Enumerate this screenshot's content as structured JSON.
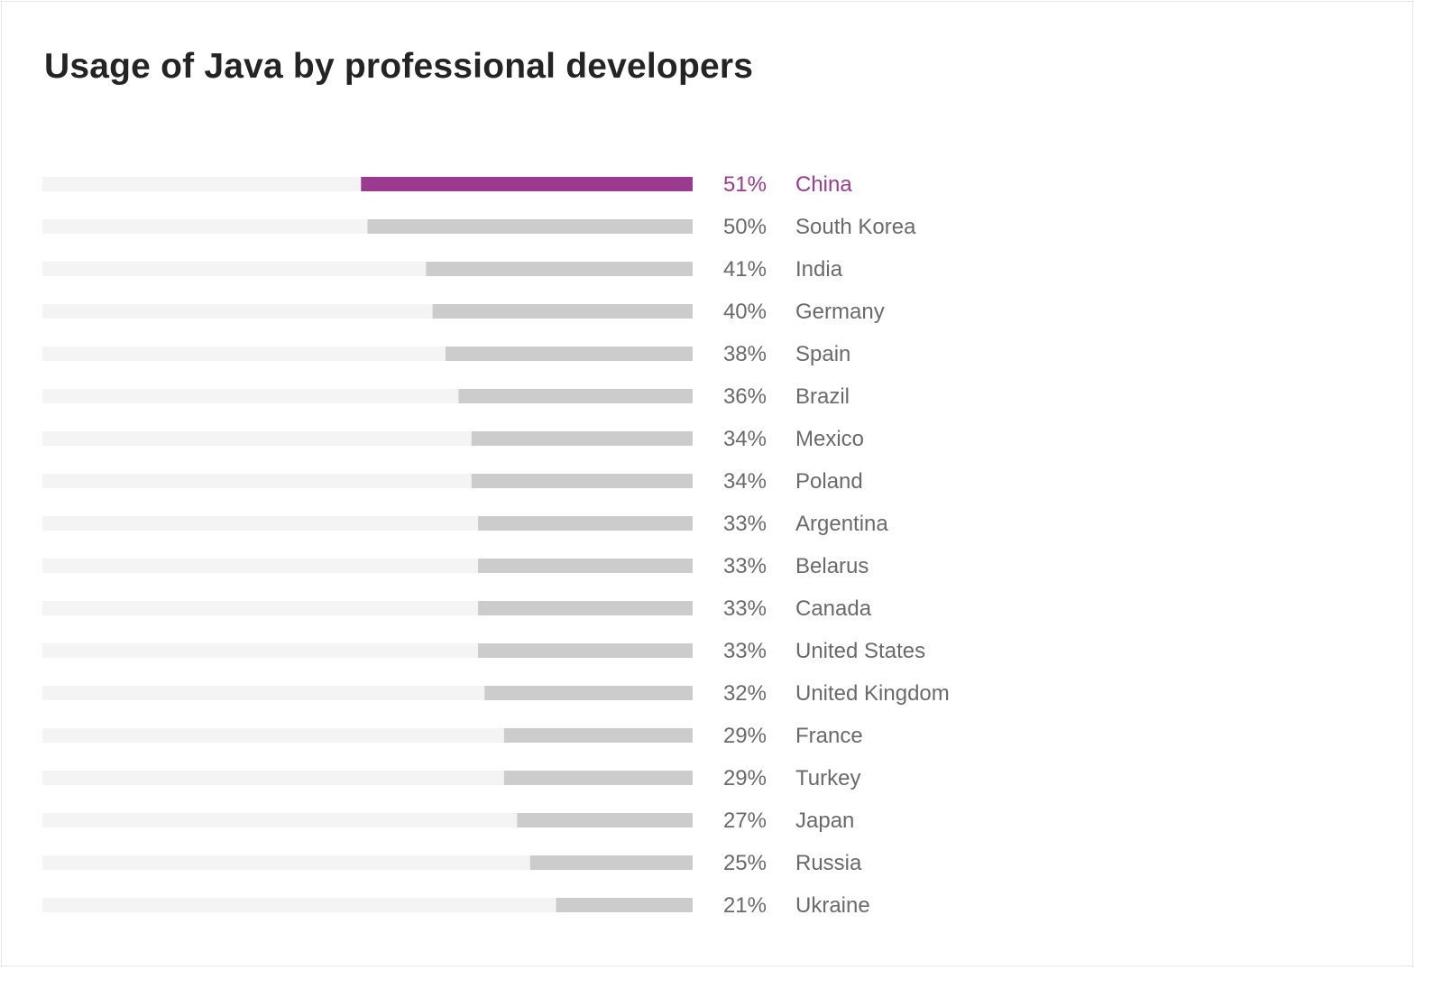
{
  "chart_data": {
    "type": "bar",
    "orientation": "horizontal",
    "title": "Usage of Java by professional developers",
    "xlabel": "",
    "ylabel": "",
    "xlim": [
      0,
      100
    ],
    "value_suffix": "%",
    "grid": false,
    "legend": "none",
    "highlight_category": "China",
    "colors": {
      "highlight": "#9b3b8f",
      "bar": "#cccccc",
      "track": "#f4f4f4",
      "label": "#6a6a6a",
      "title": "#242424"
    },
    "categories": [
      "China",
      "South Korea",
      "India",
      "Germany",
      "Spain",
      "Brazil",
      "Mexico",
      "Poland",
      "Argentina",
      "Belarus",
      "Canada",
      "United States",
      "United Kingdom",
      "France",
      "Turkey",
      "Japan",
      "Russia",
      "Ukraine"
    ],
    "values": [
      51,
      50,
      41,
      40,
      38,
      36,
      34,
      34,
      33,
      33,
      33,
      33,
      32,
      29,
      29,
      27,
      25,
      21
    ]
  }
}
